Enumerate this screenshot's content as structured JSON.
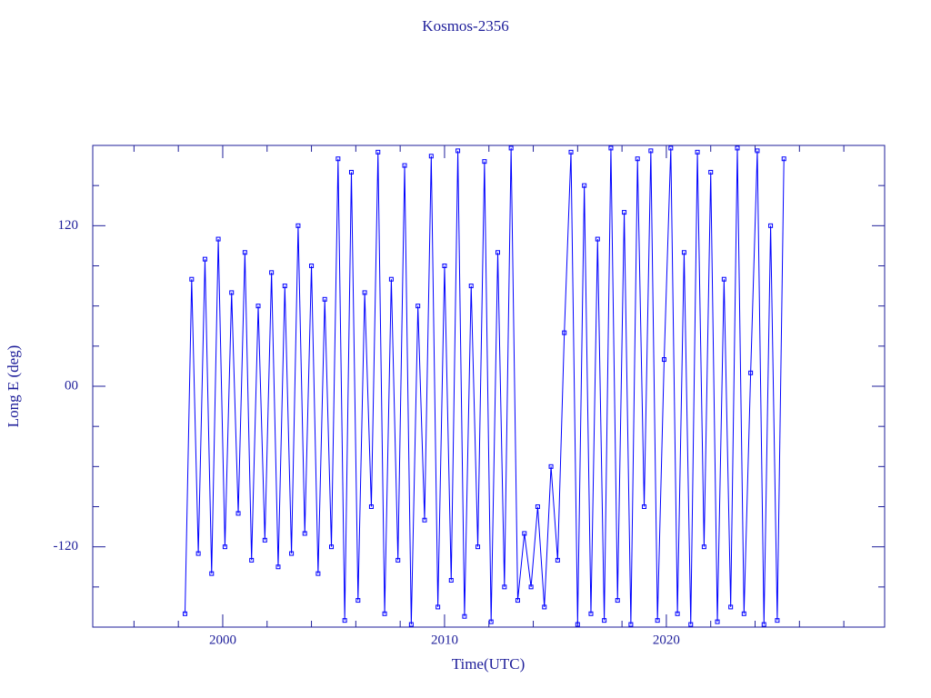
{
  "chart_data": {
    "type": "line",
    "title": "Kosmos-2356",
    "x_label": "Time(UTC)",
    "y_label": "Long E (deg)",
    "xlim": [
      1994.14,
      2029.84
    ],
    "ylim": [
      -180,
      180
    ],
    "xticks": [
      2000,
      2010,
      2020
    ],
    "yticks": [
      120,
      {
        "value": 0,
        "label": "00"
      },
      -120
    ],
    "xminorticks": [
      1996,
      1998,
      2002,
      2004,
      2006,
      2008,
      2012,
      2014,
      2016,
      2018,
      2022,
      2024,
      2026,
      2028
    ],
    "yminorticks": [
      150,
      90,
      60,
      30,
      -30,
      -60,
      -90,
      -150
    ],
    "color": "#0000ff",
    "markers": true,
    "x": [
      1998.3,
      1998.6,
      1998.9,
      1999.2,
      1999.5,
      1999.8,
      2000.1,
      2000.4,
      2000.7,
      2001.0,
      2001.3,
      2001.6,
      2001.9,
      2002.2,
      2002.5,
      2002.8,
      2003.1,
      2003.4,
      2003.7,
      2004.0,
      2004.3,
      2004.6,
      2004.9,
      2005.2,
      2005.5,
      2005.8,
      2006.1,
      2006.4,
      2006.7,
      2007.0,
      2007.3,
      2007.6,
      2007.9,
      2008.2,
      2008.5,
      2008.8,
      2009.1,
      2009.4,
      2009.7,
      2010.0,
      2010.3,
      2010.6,
      2010.9,
      2011.2,
      2011.5,
      2011.8,
      2012.1,
      2012.4,
      2012.7,
      2013.0,
      2013.3,
      2013.6,
      2013.9,
      2014.2,
      2014.5,
      2014.8,
      2015.1,
      2015.4,
      2015.7,
      2016.0,
      2016.3,
      2016.6,
      2016.9,
      2017.2,
      2017.5,
      2017.8,
      2018.1,
      2018.4,
      2018.7,
      2019.0,
      2019.3,
      2019.6,
      2019.9,
      2020.2,
      2020.5,
      2020.8,
      2021.1,
      2021.4,
      2021.7,
      2022.0,
      2022.3,
      2022.6,
      2022.9,
      2023.2,
      2023.5,
      2023.8,
      2024.1,
      2024.4,
      2024.7,
      2025.0,
      2025.3
    ],
    "values": [
      -170,
      80,
      -125,
      95,
      -140,
      110,
      -120,
      70,
      -95,
      100,
      -130,
      60,
      -115,
      85,
      -135,
      75,
      -125,
      120,
      -110,
      90,
      -140,
      65,
      -120,
      170,
      -175,
      160,
      -160,
      70,
      -90,
      175,
      -170,
      80,
      -130,
      165,
      -178,
      60,
      -100,
      172,
      -165,
      90,
      -145,
      176,
      -172,
      75,
      -120,
      168,
      -176,
      100,
      -150,
      178,
      -160,
      -110,
      -150,
      -90,
      -165,
      -60,
      -130,
      40,
      175,
      -178,
      150,
      -170,
      110,
      -175,
      178,
      -160,
      130,
      -178,
      170,
      -90,
      176,
      -175,
      20,
      178,
      -170,
      100,
      -178,
      175,
      -120,
      160,
      -176,
      80,
      -165,
      178,
      -170,
      10,
      176,
      -178,
      120,
      -175,
      170
    ]
  }
}
